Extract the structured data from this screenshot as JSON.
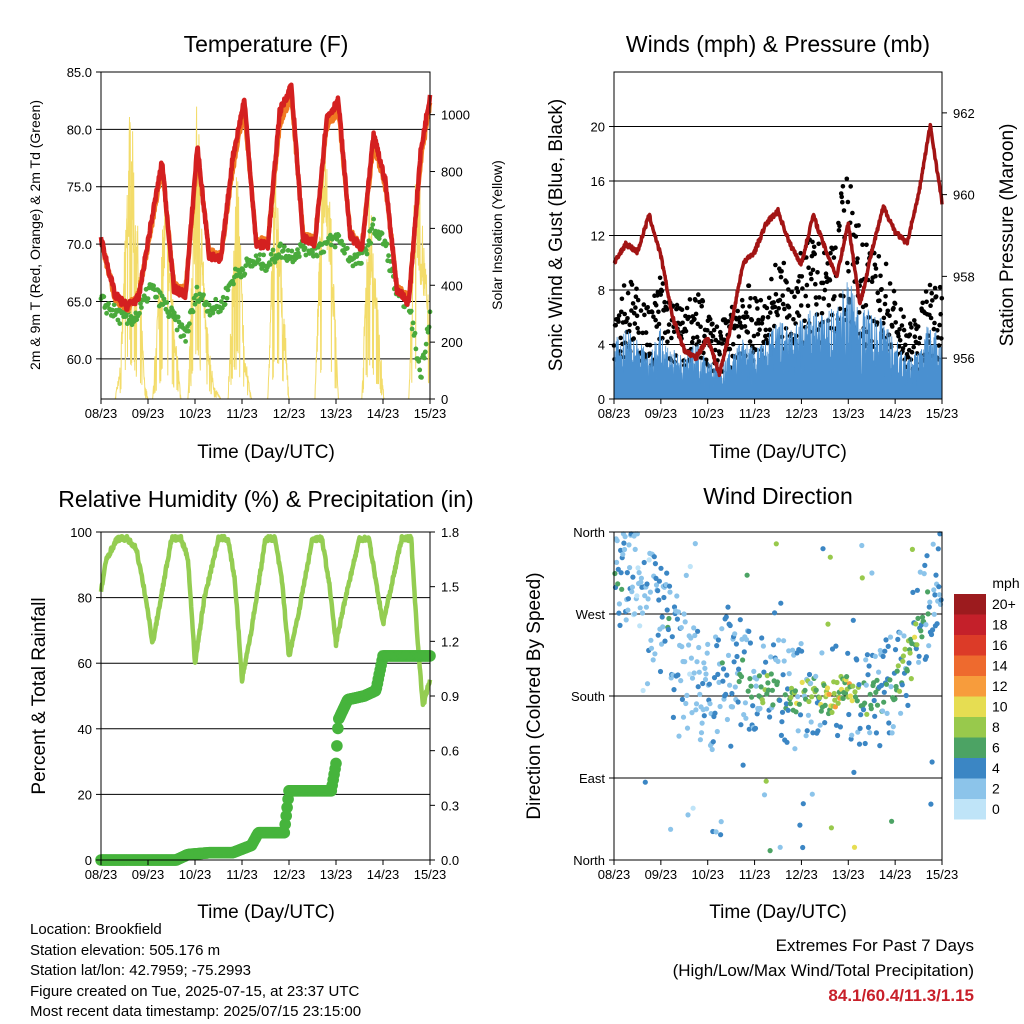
{
  "x_ticks": [
    "08/23",
    "09/23",
    "10/23",
    "11/23",
    "12/23",
    "13/23",
    "14/23",
    "15/23"
  ],
  "colors": {
    "temp_2m": "#d42020",
    "temp_9m": "#f07a22",
    "dewpoint": "#4aaa3c",
    "solar": "#f3dc6a",
    "wind": "#4a90d0",
    "gust": "#000000",
    "pressure": "#a21414",
    "humidity": "#94cd52",
    "precip": "#46b43c"
  },
  "panels": {
    "temp": {
      "title": "Temperature (F)",
      "xlabel": "Time (Day/UTC)",
      "ylabel": "2m & 9m T (Red, Orange) & 2m Td (Green)",
      "y2label": "Solar Insolation (Yellow)",
      "yticks": [
        "85.0",
        "80.0",
        "75.0",
        "70.0",
        "65.0",
        "60.0"
      ],
      "y2ticks": [
        "1000",
        "800",
        "600",
        "400",
        "200",
        "0"
      ]
    },
    "wind": {
      "title": "Winds (mph) & Pressure (mb)",
      "xlabel": "Time (Day/UTC)",
      "ylabel": "Sonic Wind & Gust (Blue, Black)",
      "y2label": "Station Pressure (Maroon)",
      "yticks": [
        "20",
        "16",
        "12",
        "8",
        "4",
        "0"
      ],
      "y2ticks": [
        "962",
        "960",
        "958",
        "956"
      ]
    },
    "rh": {
      "title": "Relative Humidity (%) & Precipitation (in)",
      "xlabel": "Time (Day/UTC)",
      "ylabel": "Percent & Total Rainfall",
      "yticks": [
        "100",
        "80",
        "60",
        "40",
        "20",
        "0"
      ],
      "y2ticks": [
        "1.8",
        "1.5",
        "1.2",
        "0.9",
        "0.6",
        "0.3",
        "0.0"
      ]
    },
    "dir": {
      "title": "Wind Direction",
      "xlabel": "Time (Day/UTC)",
      "ylabel": "Direction (Colored By Speed)",
      "yticks": [
        "North",
        "West",
        "South",
        "East",
        "North"
      ],
      "legend_title": "mph",
      "legend_labels": [
        "20+",
        "18",
        "16",
        "14",
        "12",
        "10",
        "8",
        "6",
        "4",
        "2",
        "0"
      ],
      "legend_colors": [
        "#9c1b1e",
        "#c4202a",
        "#dc3b28",
        "#ee6a2e",
        "#f79c3c",
        "#e6dd52",
        "#98c94c",
        "#4ca364",
        "#3b86c4",
        "#8cc4ea",
        "#bfe4f8"
      ]
    }
  },
  "chart_data": [
    {
      "type": "line",
      "title": "Temperature (F)",
      "xlabel": "Time (Day/UTC)",
      "x": [
        "08/23",
        "09/23",
        "10/23",
        "11/23",
        "12/23",
        "13/23",
        "14/23",
        "15/23"
      ],
      "ylim": [
        56.5,
        85.0
      ],
      "y2lim": [
        0,
        1150
      ],
      "series": [
        {
          "x": [
            0,
            0.3,
            0.55,
            0.8,
            1.05,
            1.3,
            1.55,
            1.8,
            2.05,
            2.3,
            2.55,
            2.8,
            3.05,
            3.3,
            3.55,
            3.8,
            4.05,
            4.3,
            4.55,
            4.8,
            5.05,
            5.3,
            5.55,
            5.8,
            6.05,
            6.3,
            6.55,
            6.8,
            7.0
          ],
          "y": [
            70.5,
            65.5,
            64.6,
            65.3,
            71.5,
            77.2,
            66.1,
            65.6,
            78.6,
            69.0,
            68.6,
            77.5,
            82.6,
            70.0,
            69.9,
            81.5,
            83.8,
            70.5,
            70.0,
            81.0,
            82.5,
            70.8,
            69.5,
            79.5,
            75.5,
            66.0,
            64.9,
            78.0,
            83.0
          ]
        },
        {
          "x": [
            0,
            0.3,
            0.55,
            0.8,
            1.05,
            1.3,
            1.55,
            1.8,
            2.05,
            2.3,
            2.55,
            2.8,
            3.05,
            3.3,
            3.55,
            3.8,
            4.05,
            4.3,
            4.55,
            4.8,
            5.05,
            5.3,
            5.55,
            5.8,
            6.05,
            6.3,
            6.55,
            6.8,
            7.0
          ],
          "y": [
            70.3,
            65.3,
            64.4,
            65.6,
            71.0,
            76.8,
            66.5,
            66.0,
            77.8,
            69.3,
            68.9,
            76.5,
            81.8,
            70.3,
            70.2,
            80.5,
            83.0,
            70.8,
            70.3,
            80.2,
            81.8,
            71.0,
            69.8,
            78.8,
            75.0,
            66.3,
            65.2,
            77.2,
            82.3
          ]
        },
        {
          "x": [
            0,
            0.3,
            0.55,
            0.8,
            1.05,
            1.3,
            1.55,
            1.8,
            2.05,
            2.3,
            2.55,
            2.8,
            3.05,
            3.3,
            3.55,
            3.8,
            4.05,
            4.3,
            4.55,
            4.8,
            5.05,
            5.3,
            5.55,
            5.8,
            6.05,
            6.3,
            6.55,
            6.8,
            7.0
          ],
          "y": [
            65.0,
            64.0,
            63.3,
            63.9,
            66.2,
            65.0,
            63.5,
            62.0,
            65.8,
            64.5,
            64.5,
            67.0,
            68.0,
            68.5,
            68.3,
            69.5,
            69.0,
            69.8,
            69.5,
            70.0,
            70.5,
            68.8,
            68.5,
            71.5,
            70.0,
            65.5,
            65.0,
            58.5,
            64.0
          ]
        },
        {
          "x": [
            0,
            0.3,
            0.42,
            0.62,
            0.78,
            0.92,
            1.0,
            1.1,
            1.22,
            1.38,
            1.55,
            1.7,
            1.85,
            2.05,
            2.22,
            2.4,
            2.55,
            2.7,
            2.9,
            3.05,
            3.2,
            3.4,
            3.55,
            3.7,
            3.85,
            4.0,
            4.2,
            4.38,
            4.55,
            4.72,
            4.88,
            5.05,
            5.2,
            5.4,
            5.55,
            5.7,
            5.85,
            6.02,
            6.2,
            6.4,
            6.55,
            6.7,
            6.9,
            7.0
          ],
          "y": [
            0,
            0,
            150,
            1100,
            620,
            80,
            0,
            0,
            400,
            760,
            320,
            0,
            0,
            1120,
            320,
            50,
            0,
            0,
            900,
            180,
            0,
            0,
            0,
            880,
            460,
            0,
            0,
            0,
            0,
            940,
            750,
            0,
            0,
            0,
            0,
            800,
            420,
            0,
            0,
            0,
            0,
            940,
            500,
            300
          ]
        }
      ]
    },
    {
      "type": "line",
      "title": "Winds (mph) & Pressure (mb)",
      "xlabel": "Time (Day/UTC)",
      "x": [
        "08/23",
        "09/23",
        "10/23",
        "11/23",
        "12/23",
        "13/23",
        "14/23",
        "15/23"
      ],
      "ylim": [
        0,
        24
      ],
      "y2lim": [
        955.0,
        963.0
      ],
      "series": [
        {
          "x": [
            0,
            0.25,
            0.5,
            0.75,
            1.0,
            1.25,
            1.5,
            1.75,
            2.0,
            2.25,
            2.5,
            2.75,
            3.0,
            3.25,
            3.5,
            3.75,
            4.0,
            4.25,
            4.5,
            4.75,
            5.0,
            5.25,
            5.5,
            5.75,
            6.0,
            6.25,
            6.5,
            6.75,
            7.0
          ],
          "y": [
            3,
            3.5,
            3,
            2.5,
            3.5,
            2.5,
            2,
            3,
            2,
            1.5,
            2.5,
            3,
            2.5,
            3,
            4,
            3.5,
            4,
            4.5,
            4,
            5,
            6,
            4.5,
            4.5,
            4,
            3,
            2,
            2.5,
            4,
            3
          ]
        },
        {
          "x": [
            0,
            0.25,
            0.5,
            0.75,
            1.0,
            1.25,
            1.5,
            1.75,
            2.0,
            2.25,
            2.5,
            2.75,
            3.0,
            3.25,
            3.5,
            3.75,
            4.0,
            4.25,
            4.5,
            4.75,
            5.0,
            5.25,
            5.5,
            5.75,
            6.0,
            6.25,
            6.5,
            6.75,
            7.0
          ],
          "y": [
            6,
            7,
            6,
            5,
            7,
            5.5,
            5,
            6,
            5,
            4,
            5,
            7,
            5.5,
            6,
            8,
            7,
            8,
            9,
            8,
            10,
            13,
            9,
            8,
            8,
            6,
            4,
            4.5,
            7,
            6
          ]
        },
        {
          "x": [
            0,
            0.25,
            0.5,
            0.75,
            1.0,
            1.25,
            1.5,
            1.75,
            2.0,
            2.25,
            2.5,
            2.75,
            3.0,
            3.25,
            3.5,
            3.75,
            4.0,
            4.25,
            4.5,
            4.75,
            5.0,
            5.25,
            5.5,
            5.75,
            6.0,
            6.25,
            6.5,
            6.75,
            7.0
          ],
          "y": [
            958.3,
            958.8,
            958.6,
            959.5,
            958.5,
            957.0,
            956.2,
            956.0,
            956.5,
            955.6,
            956.8,
            958.3,
            958.6,
            959.3,
            959.6,
            958.8,
            958.3,
            959.5,
            958.7,
            958.0,
            959.3,
            957.3,
            958.6,
            959.7,
            959.1,
            958.8,
            960.0,
            961.7,
            959.8
          ]
        }
      ]
    },
    {
      "type": "line",
      "title": "Relative Humidity (%) & Precipitation (in)",
      "xlabel": "Time (Day/UTC)",
      "x": [
        "08/23",
        "09/23",
        "10/23",
        "11/23",
        "12/23",
        "13/23",
        "14/23",
        "15/23"
      ],
      "ylim": [
        0,
        100
      ],
      "y2lim": [
        0.0,
        1.8
      ],
      "series": [
        {
          "x": [
            0,
            0.12,
            0.35,
            0.55,
            0.75,
            0.95,
            1.1,
            1.5,
            1.7,
            1.85,
            2.0,
            2.2,
            2.5,
            2.7,
            2.85,
            3.0,
            3.2,
            3.5,
            3.7,
            3.85,
            4.0,
            4.2,
            4.5,
            4.7,
            4.85,
            5.0,
            5.2,
            5.5,
            5.7,
            5.85,
            6.0,
            6.2,
            6.4,
            6.6,
            6.72,
            6.85,
            7.0
          ],
          "y": [
            82,
            92,
            98,
            98,
            95,
            80,
            66,
            98,
            98,
            92,
            60,
            80,
            98,
            98,
            85,
            55,
            70,
            98,
            98,
            85,
            62,
            75,
            98,
            98,
            85,
            66,
            80,
            98,
            98,
            85,
            72,
            85,
            98,
            98,
            70,
            47,
            55
          ]
        },
        {
          "x": [
            0,
            0.5,
            1.0,
            1.6,
            1.85,
            2.3,
            2.8,
            3.2,
            3.35,
            3.5,
            3.9,
            4.0,
            4.4,
            4.9,
            5.0,
            5.05,
            5.25,
            5.6,
            5.85,
            6.0,
            6.5,
            7.0
          ],
          "y": [
            0.0,
            0.0,
            0.0,
            0.0,
            0.03,
            0.04,
            0.04,
            0.08,
            0.15,
            0.15,
            0.15,
            0.38,
            0.38,
            0.38,
            0.53,
            0.77,
            0.88,
            0.9,
            0.93,
            1.12,
            1.12,
            1.12
          ]
        }
      ]
    },
    {
      "type": "scatter",
      "title": "Wind Direction",
      "xlabel": "Time (Day/UTC)",
      "ylabel": "Direction (Colored By Speed)",
      "x": [
        "08/23",
        "09/23",
        "10/23",
        "11/23",
        "12/23",
        "13/23",
        "14/23",
        "15/23"
      ],
      "ylim": [
        0,
        360
      ],
      "series": [
        {
          "x": [
            0.1,
            0.3,
            0.5,
            0.8,
            1.2,
            1.6,
            2.1,
            2.4,
            2.8,
            3.2,
            3.6,
            3.9,
            4.3,
            4.6,
            4.9,
            5.2,
            5.5,
            5.8,
            6.1,
            6.4,
            6.7,
            6.9
          ],
          "y": [
            300,
            320,
            330,
            280,
            250,
            200,
            180,
            220,
            200,
            190,
            185,
            180,
            182,
            178,
            185,
            180,
            176,
            182,
            200,
            240,
            280,
            320
          ],
          "v": [
            4,
            3,
            2,
            3,
            4,
            2,
            3,
            4,
            5,
            6,
            5,
            7,
            6,
            8,
            10,
            6,
            5,
            4,
            6,
            7,
            5,
            3
          ]
        }
      ]
    }
  ],
  "info": {
    "location": "Location: Brookfield",
    "elevation": "Station elevation: 505.176 m",
    "latlon": "Station lat/lon: 42.7959; -75.2993",
    "created": "Figure created on Tue, 2025-07-15, at 23:37 UTC",
    "recent": "Most recent data timestamp: 2025/07/15 23:15:00"
  },
  "extremes": {
    "title": "Extremes For Past 7 Days",
    "subtitle": "(High/Low/Max Wind/Total Precipitation)",
    "values": "84.1/60.4/11.3/1.15"
  }
}
